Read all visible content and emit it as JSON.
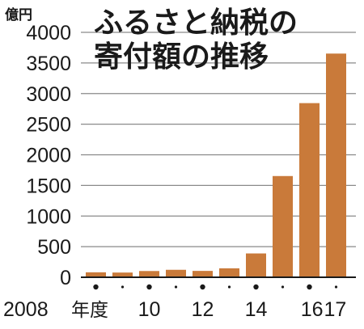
{
  "chart_data": {
    "type": "bar",
    "title_lines": [
      "ふるさと納税の",
      "寄付額の推移"
    ],
    "unit": "億円",
    "categories": [
      "2008",
      "2009",
      "2010",
      "2011",
      "2012",
      "2013",
      "2014",
      "2015",
      "2016",
      "2017"
    ],
    "values": [
      81,
      77,
      102,
      122,
      104,
      146,
      389,
      1653,
      2844,
      3653
    ],
    "ylim": [
      0,
      4000
    ],
    "yticks": [
      0,
      500,
      1000,
      1500,
      2000,
      2500,
      3000,
      3500,
      4000
    ],
    "x_labels": [
      {
        "category": "2008",
        "text": "2008"
      },
      {
        "category": "2010",
        "text": "10"
      },
      {
        "category": "2012",
        "text": "12"
      },
      {
        "category": "2014",
        "text": "14"
      },
      {
        "category": "2016",
        "text": "16"
      },
      {
        "category": "2017",
        "text": "17"
      }
    ],
    "x_suffix": "年度",
    "grid": true,
    "bar_color": "#c97a3a",
    "grid_color": "#8a8a8a",
    "axis_color": "#1a1a1a"
  }
}
